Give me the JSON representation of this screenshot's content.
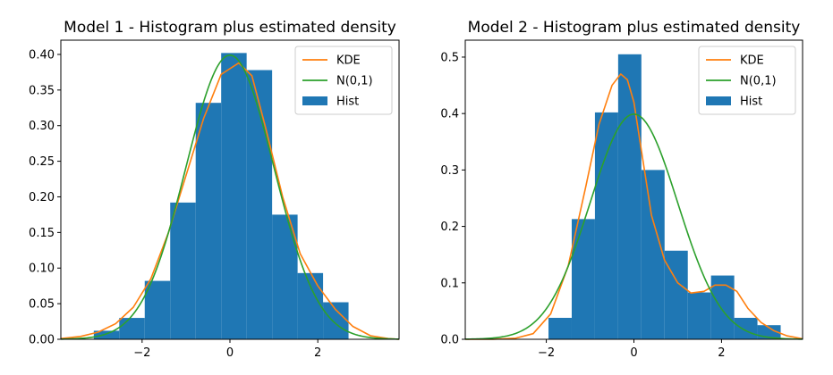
{
  "chart_data": [
    {
      "type": "bar",
      "title": "Model 1 - Histogram plus estimated density",
      "xlabel": "",
      "ylabel": "",
      "xlim": [
        -3.85,
        3.85
      ],
      "ylim": [
        0,
        0.42
      ],
      "xticks": [
        -2,
        0,
        2
      ],
      "xtick_labels": [
        "−2",
        "0",
        "2"
      ],
      "yticks": [
        0,
        0.05,
        0.1,
        0.15,
        0.2,
        0.25,
        0.3,
        0.35,
        0.4
      ],
      "ytick_labels": [
        "0.00",
        "0.05",
        "0.10",
        "0.15",
        "0.20",
        "0.25",
        "0.30",
        "0.35",
        "0.40"
      ],
      "legend_position": "top-right",
      "legend": [
        "KDE",
        "N(0,1)",
        "Hist"
      ],
      "colors": {
        "hist": "#1f77b4",
        "kde": "#ff7f0e",
        "normal": "#2ca02c"
      },
      "histogram": {
        "bin_edges": [
          -3.1,
          -2.52,
          -1.94,
          -1.36,
          -0.78,
          -0.2,
          0.38,
          0.96,
          1.54,
          2.12,
          2.7
        ],
        "values": [
          0.012,
          0.03,
          0.082,
          0.192,
          0.332,
          0.402,
          0.378,
          0.175,
          0.093,
          0.052
        ]
      },
      "series": [
        {
          "name": "KDE",
          "x": [
            -3.85,
            -3.4,
            -3.0,
            -2.6,
            -2.2,
            -1.8,
            -1.4,
            -1.0,
            -0.6,
            -0.2,
            0.2,
            0.5,
            0.8,
            1.2,
            1.6,
            2.0,
            2.4,
            2.8,
            3.2,
            3.6,
            3.85
          ],
          "values": [
            0.001,
            0.004,
            0.01,
            0.022,
            0.045,
            0.085,
            0.15,
            0.23,
            0.31,
            0.372,
            0.388,
            0.37,
            0.3,
            0.2,
            0.12,
            0.075,
            0.042,
            0.018,
            0.005,
            0.001,
            0.0
          ]
        },
        {
          "name": "N(0,1)",
          "function": "normal_pdf",
          "mean": 0,
          "std": 1
        }
      ]
    },
    {
      "type": "bar",
      "title": "Model 2 - Histogram plus estimated density",
      "xlabel": "",
      "ylabel": "",
      "xlim": [
        -3.85,
        3.85
      ],
      "ylim": [
        0,
        0.53
      ],
      "xticks": [
        -2,
        0,
        2
      ],
      "xtick_labels": [
        "−2",
        "0",
        "2"
      ],
      "yticks": [
        0.0,
        0.1,
        0.2,
        0.3,
        0.4,
        0.5
      ],
      "ytick_labels": [
        "0.0",
        "0.1",
        "0.2",
        "0.3",
        "0.4",
        "0.5"
      ],
      "legend_position": "top-right",
      "legend": [
        "KDE",
        "N(0,1)",
        "Hist"
      ],
      "colors": {
        "hist": "#1f77b4",
        "kde": "#ff7f0e",
        "normal": "#2ca02c"
      },
      "histogram": {
        "bin_edges": [
          -1.95,
          -1.42,
          -0.89,
          -0.36,
          0.17,
          0.7,
          1.23,
          1.76,
          2.29,
          2.82,
          3.35
        ],
        "values": [
          0.038,
          0.213,
          0.402,
          0.505,
          0.3,
          0.157,
          0.083,
          0.113,
          0.038,
          0.025
        ]
      },
      "series": [
        {
          "name": "KDE",
          "x": [
            -3.85,
            -3.2,
            -2.7,
            -2.3,
            -1.9,
            -1.5,
            -1.1,
            -0.8,
            -0.5,
            -0.3,
            -0.15,
            0.0,
            0.2,
            0.4,
            0.7,
            1.0,
            1.3,
            1.6,
            1.85,
            2.1,
            2.35,
            2.6,
            2.9,
            3.2,
            3.5,
            3.85
          ],
          "values": [
            0.0,
            0.0,
            0.002,
            0.01,
            0.045,
            0.13,
            0.27,
            0.38,
            0.45,
            0.47,
            0.46,
            0.42,
            0.32,
            0.22,
            0.14,
            0.1,
            0.082,
            0.085,
            0.096,
            0.096,
            0.085,
            0.055,
            0.03,
            0.015,
            0.006,
            0.001
          ]
        },
        {
          "name": "N(0,1)",
          "function": "normal_pdf",
          "mean": 0,
          "std": 1
        }
      ]
    }
  ]
}
